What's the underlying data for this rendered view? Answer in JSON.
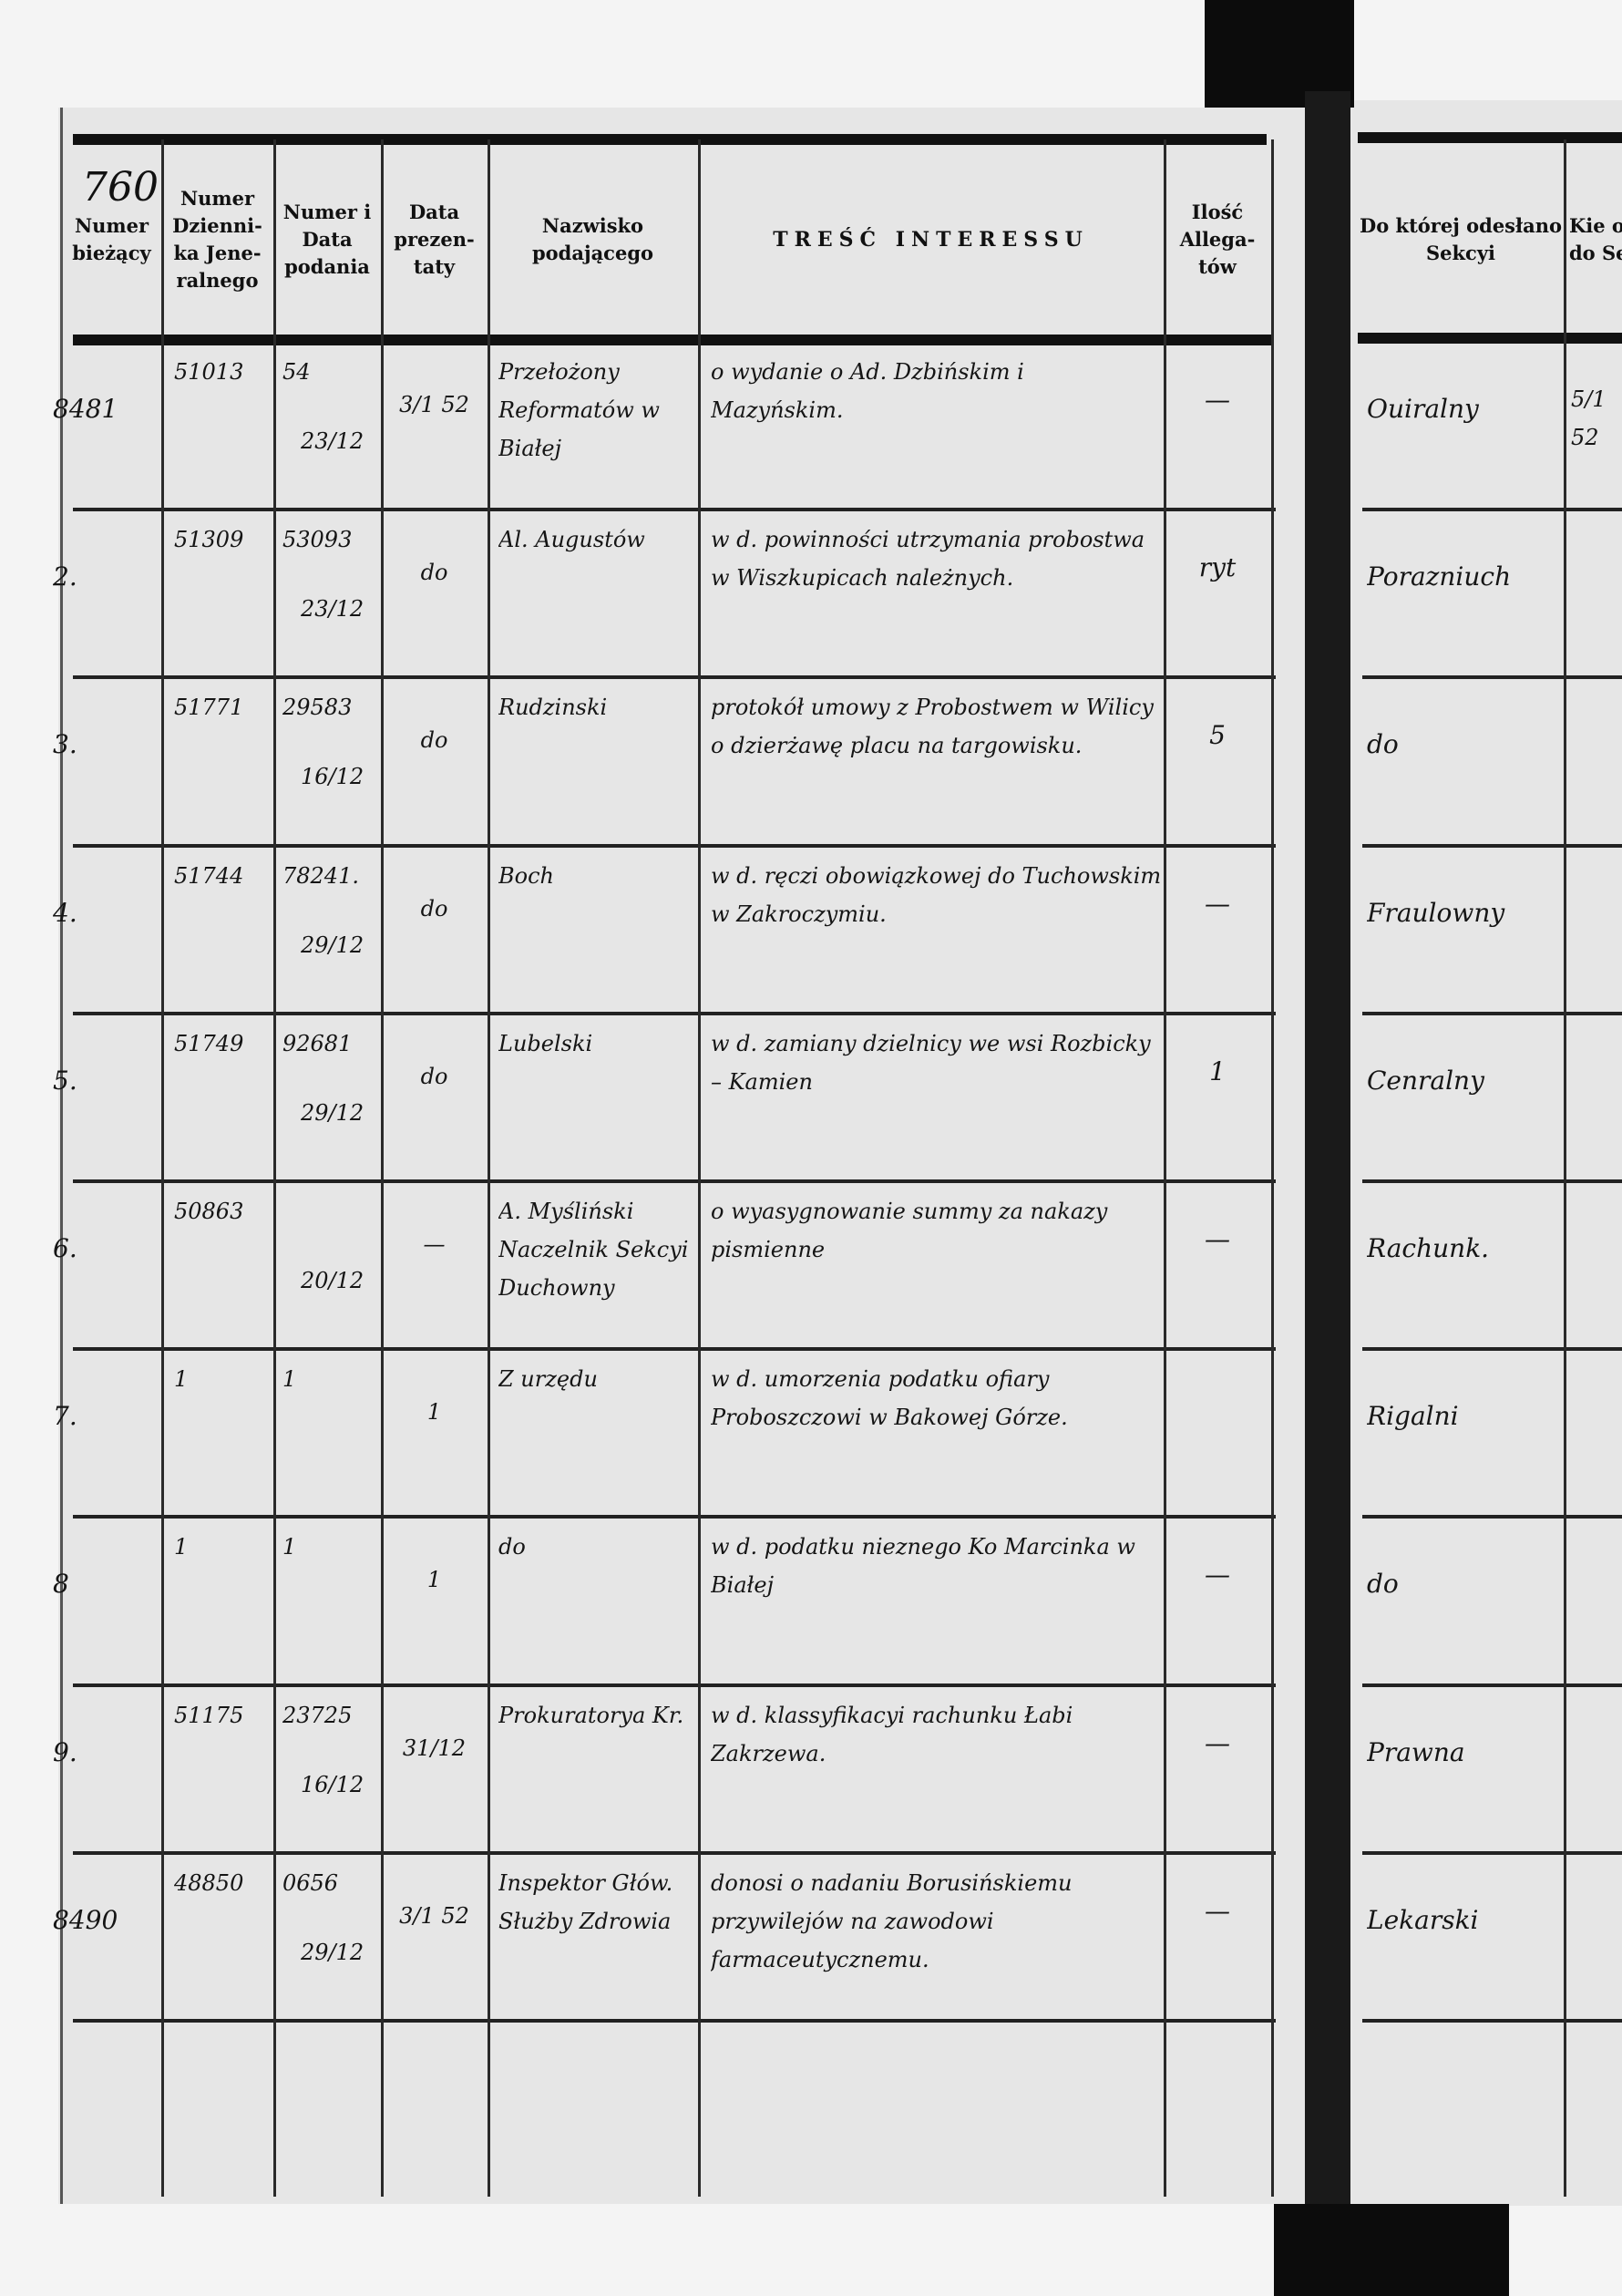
{
  "page_number": "760",
  "headers": {
    "numer_biezacy": "Numer bieżący",
    "numer_dziennika": "Numer Dzienni-ka Jene-ralnego",
    "numer_data_podania": "Numer i Data podania",
    "data_prezentaty": "Data prezen-taty",
    "nazwisko": "Nazwisko podającego",
    "tresc": "TREŚĆ INTERESSU",
    "ilosc_allegatow": "Ilość Allega-tów",
    "sekcya": "Do której odesłano Sekcyi",
    "kiedy": "Kie odds do Sek"
  },
  "rows": [
    {
      "nr": "8481",
      "dziennik": "51013",
      "podanie_nr": "54",
      "podanie_data": "23/12",
      "prezentata": "3/1 52",
      "nazwisko": "Przełożony Reformatów w Białej",
      "tresc": "o wydanie o Ad. Dzbińskim i Mazyńskim.",
      "allegaty": "—",
      "sekcya": "Ouiralny",
      "kiedy": "5/1 52"
    },
    {
      "nr": "2.",
      "dziennik": "51309",
      "podanie_nr": "53093",
      "podanie_data": "23/12",
      "prezentata": "do",
      "nazwisko": "Al. Augustów",
      "tresc": "w d. powinności utrzymania probostwa w Wiszkupicach należnych.",
      "allegaty": "ryt",
      "sekcya": "Porazniuch",
      "kiedy": ""
    },
    {
      "nr": "3.",
      "dziennik": "51771",
      "podanie_nr": "29583",
      "podanie_data": "16/12",
      "prezentata": "do",
      "nazwisko": "Rudzinski",
      "tresc": "protokół umowy z Probostwem w Wilicy o dzierżawę placu na targowisku.",
      "allegaty": "5",
      "sekcya": "do",
      "kiedy": ""
    },
    {
      "nr": "4.",
      "dziennik": "51744",
      "podanie_nr": "78241.",
      "podanie_data": "29/12",
      "prezentata": "do",
      "nazwisko": "Boch",
      "tresc": "w d. ręczi obowiązkowej do Tuchowskim w Zakroczymiu.",
      "allegaty": "—",
      "sekcya": "Fraulowny",
      "kiedy": ""
    },
    {
      "nr": "5.",
      "dziennik": "51749",
      "podanie_nr": "92681",
      "podanie_data": "29/12",
      "prezentata": "do",
      "nazwisko": "Lubelski",
      "tresc": "w d. zamiany dzielnicy we wsi Rozbicky – Kamien",
      "allegaty": "1",
      "sekcya": "Cenralny",
      "kiedy": ""
    },
    {
      "nr": "6.",
      "dziennik": "50863",
      "podanie_nr": "",
      "podanie_data": "20/12",
      "prezentata": "—",
      "nazwisko": "A. Myśliński Naczelnik Sekcyi Duchowny",
      "tresc": "o wyasygnowanie summy za nakazy pismienne",
      "allegaty": "—",
      "sekcya": "Rachunk.",
      "kiedy": ""
    },
    {
      "nr": "7.",
      "dziennik": "1",
      "podanie_nr": "1",
      "podanie_data": "",
      "prezentata": "1",
      "nazwisko": "Z urzędu",
      "tresc": "w d. umorzenia podatku ofiary Proboszczowi w Bakowej Górze.",
      "allegaty": "",
      "sekcya": "Rigalni",
      "kiedy": ""
    },
    {
      "nr": "8",
      "dziennik": "1",
      "podanie_nr": "1",
      "podanie_data": "",
      "prezentata": "1",
      "nazwisko": "do",
      "tresc": "w d. podatku nieznego Ko Marcinka w Białej",
      "allegaty": "—",
      "sekcya": "do",
      "kiedy": ""
    },
    {
      "nr": "9.",
      "dziennik": "51175",
      "podanie_nr": "23725",
      "podanie_data": "16/12",
      "prezentata": "31/12",
      "nazwisko": "Prokuratorya Kr.",
      "tresc": "w d. klassyfikacyi rachunku Łabi Zakrzewa.",
      "allegaty": "—",
      "sekcya": "Prawna",
      "kiedy": ""
    },
    {
      "nr": "8490",
      "dziennik": "48850",
      "podanie_nr": "0656",
      "podanie_data": "29/12",
      "prezentata": "3/1 52",
      "nazwisko": "Inspektor Głów. Służby Zdrowia",
      "tresc": "donosi o nadaniu Borusińskiemu przywilejów na zawodowi farmaceutycznemu.",
      "allegaty": "—",
      "sekcya": "Lekarski",
      "kiedy": ""
    }
  ]
}
